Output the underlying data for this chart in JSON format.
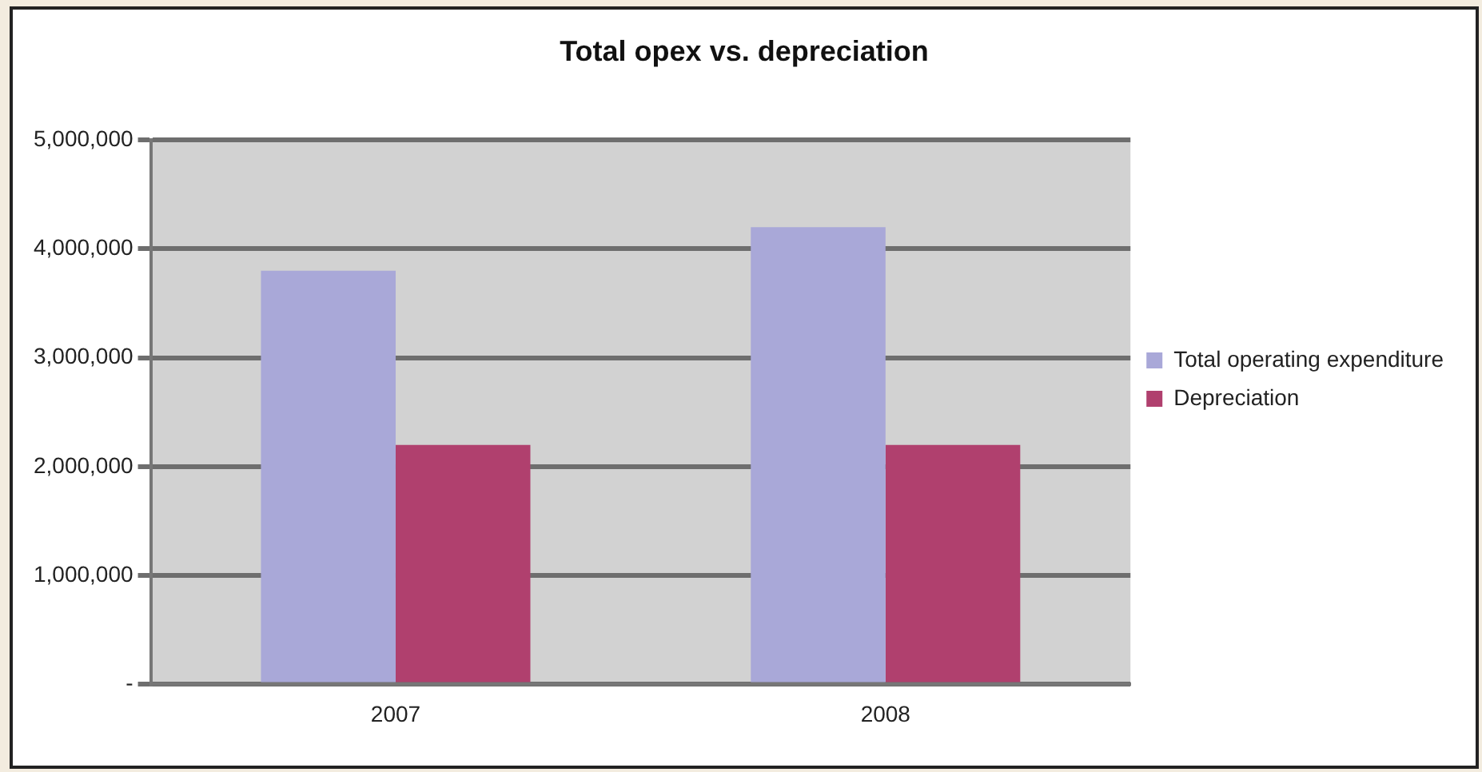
{
  "chart_data": {
    "type": "bar",
    "title": "Total opex vs. depreciation",
    "categories": [
      "2007",
      "2008"
    ],
    "series": [
      {
        "name": "Total operating expenditure",
        "color": "#a9a8d8",
        "values": [
          3800000,
          4200000
        ]
      },
      {
        "name": "Depreciation",
        "color": "#b0406e",
        "values": [
          2200000,
          2200000
        ]
      }
    ],
    "ylim": [
      0,
      5000000
    ],
    "yticks": [
      {
        "value": 0,
        "label": "-"
      },
      {
        "value": 1000000,
        "label": "1,000,000"
      },
      {
        "value": 2000000,
        "label": "2,000,000"
      },
      {
        "value": 3000000,
        "label": "3,000,000"
      },
      {
        "value": 4000000,
        "label": "4,000,000"
      },
      {
        "value": 5000000,
        "label": "5,000,000"
      }
    ],
    "grid": "y",
    "legend": "right"
  }
}
